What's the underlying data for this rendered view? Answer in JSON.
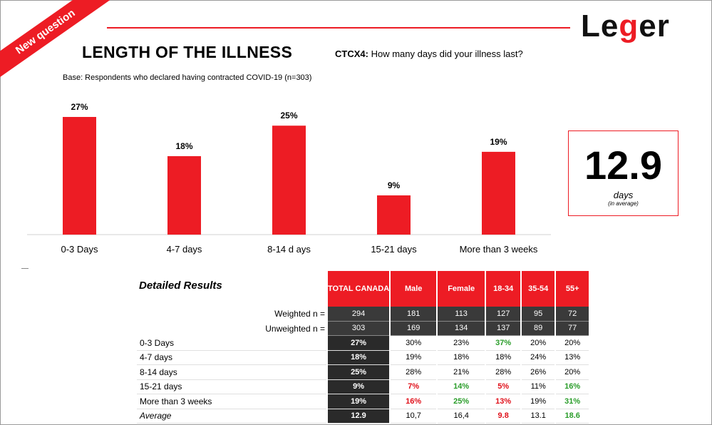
{
  "ribbon": "New question",
  "logo": {
    "pre": "Le",
    "g": "g",
    "post": "er"
  },
  "title": "LENGTH OF THE ILLNESS",
  "question_code": "CTCX4:",
  "question_text": "How many days did your illness last?",
  "base": "Base: Respondents who declared having contracted COVID-19 (n=303)",
  "average_box": {
    "value": "12.9",
    "unit": "days",
    "note": "(in average)"
  },
  "colors": {
    "accent": "#ed1c24",
    "dark_cell": "#2a2a2a",
    "up": "#2a9d2a",
    "down": "#e0101a"
  },
  "chart_data": {
    "type": "bar",
    "categories": [
      "0-3 Days",
      "4-7 days",
      "8-14 d ays",
      "15-21 days",
      "More than 3 weeks"
    ],
    "values": [
      27,
      18,
      25,
      9,
      19
    ],
    "labels": [
      "27%",
      "18%",
      "25%",
      "9%",
      "19%"
    ],
    "title": "",
    "xlabel": "",
    "ylabel": "",
    "ylim": [
      0,
      27
    ],
    "grid": false
  },
  "table": {
    "title": "Detailed Results",
    "headers": [
      "TOTAL CANADA",
      "Male",
      "Female",
      "18-34",
      "35-54",
      "55+"
    ],
    "n_rows": [
      {
        "label": "Weighted n =",
        "values": [
          "294",
          "181",
          "113",
          "127",
          "95",
          "72"
        ]
      },
      {
        "label": "Unweighted n =",
        "values": [
          "303",
          "169",
          "134",
          "137",
          "89",
          "77"
        ]
      }
    ],
    "rows": [
      {
        "label": "0-3 Days",
        "values": [
          "27%",
          "30%",
          "23%",
          "37%",
          "20%",
          "20%"
        ],
        "flags": [
          "",
          "",
          "",
          "up",
          "",
          ""
        ]
      },
      {
        "label": "4-7 days",
        "values": [
          "18%",
          "19%",
          "18%",
          "18%",
          "24%",
          "13%"
        ],
        "flags": [
          "",
          "",
          "",
          "",
          "",
          ""
        ]
      },
      {
        "label": "8-14 days",
        "values": [
          "25%",
          "28%",
          "21%",
          "28%",
          "26%",
          "20%"
        ],
        "flags": [
          "",
          "",
          "",
          "",
          "",
          ""
        ]
      },
      {
        "label": "15-21 days",
        "values": [
          "9%",
          "7%",
          "14%",
          "5%",
          "11%",
          "16%"
        ],
        "flags": [
          "",
          "down",
          "up",
          "down",
          "",
          "up"
        ]
      },
      {
        "label": "More than 3 weeks",
        "values": [
          "19%",
          "16%",
          "25%",
          "13%",
          "19%",
          "31%"
        ],
        "flags": [
          "",
          "down",
          "up",
          "down",
          "",
          "up"
        ]
      },
      {
        "label": "Average",
        "values": [
          "12.9",
          "10,7",
          "16,4",
          "9.8",
          "13.1",
          "18.6"
        ],
        "flags": [
          "",
          "",
          "",
          "down",
          "",
          "up"
        ]
      }
    ]
  }
}
